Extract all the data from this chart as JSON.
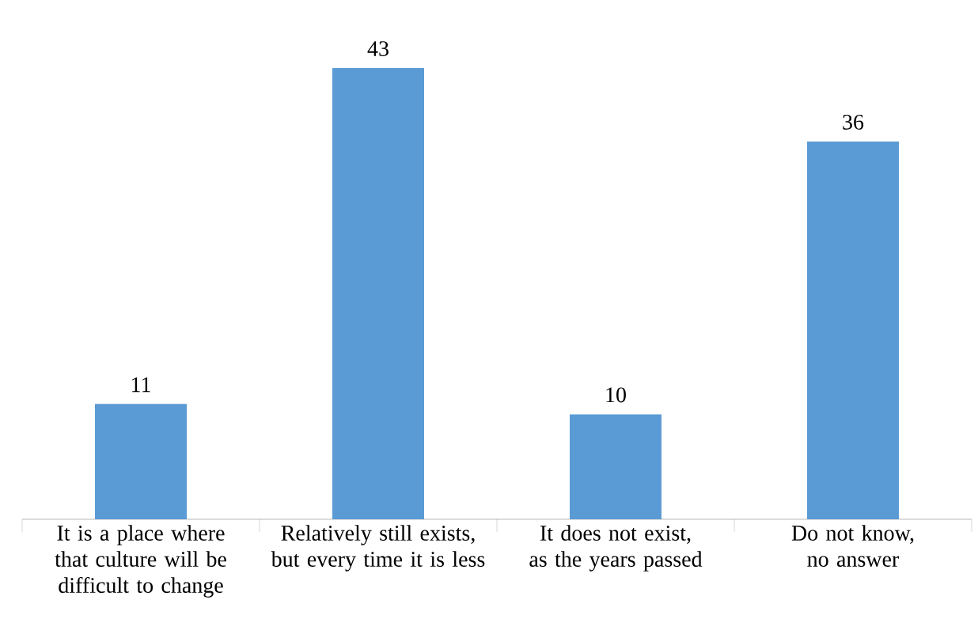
{
  "chart_data": {
    "type": "bar",
    "categories": [
      "It is a place where that culture will be difficult to change",
      "Relatively still exists, but every time it is less",
      "It does not exist, as the years passed",
      "Do not know, no answer"
    ],
    "values": [
      11,
      43,
      10,
      36
    ],
    "color": "#5b9bd5",
    "data_labels": true
  }
}
